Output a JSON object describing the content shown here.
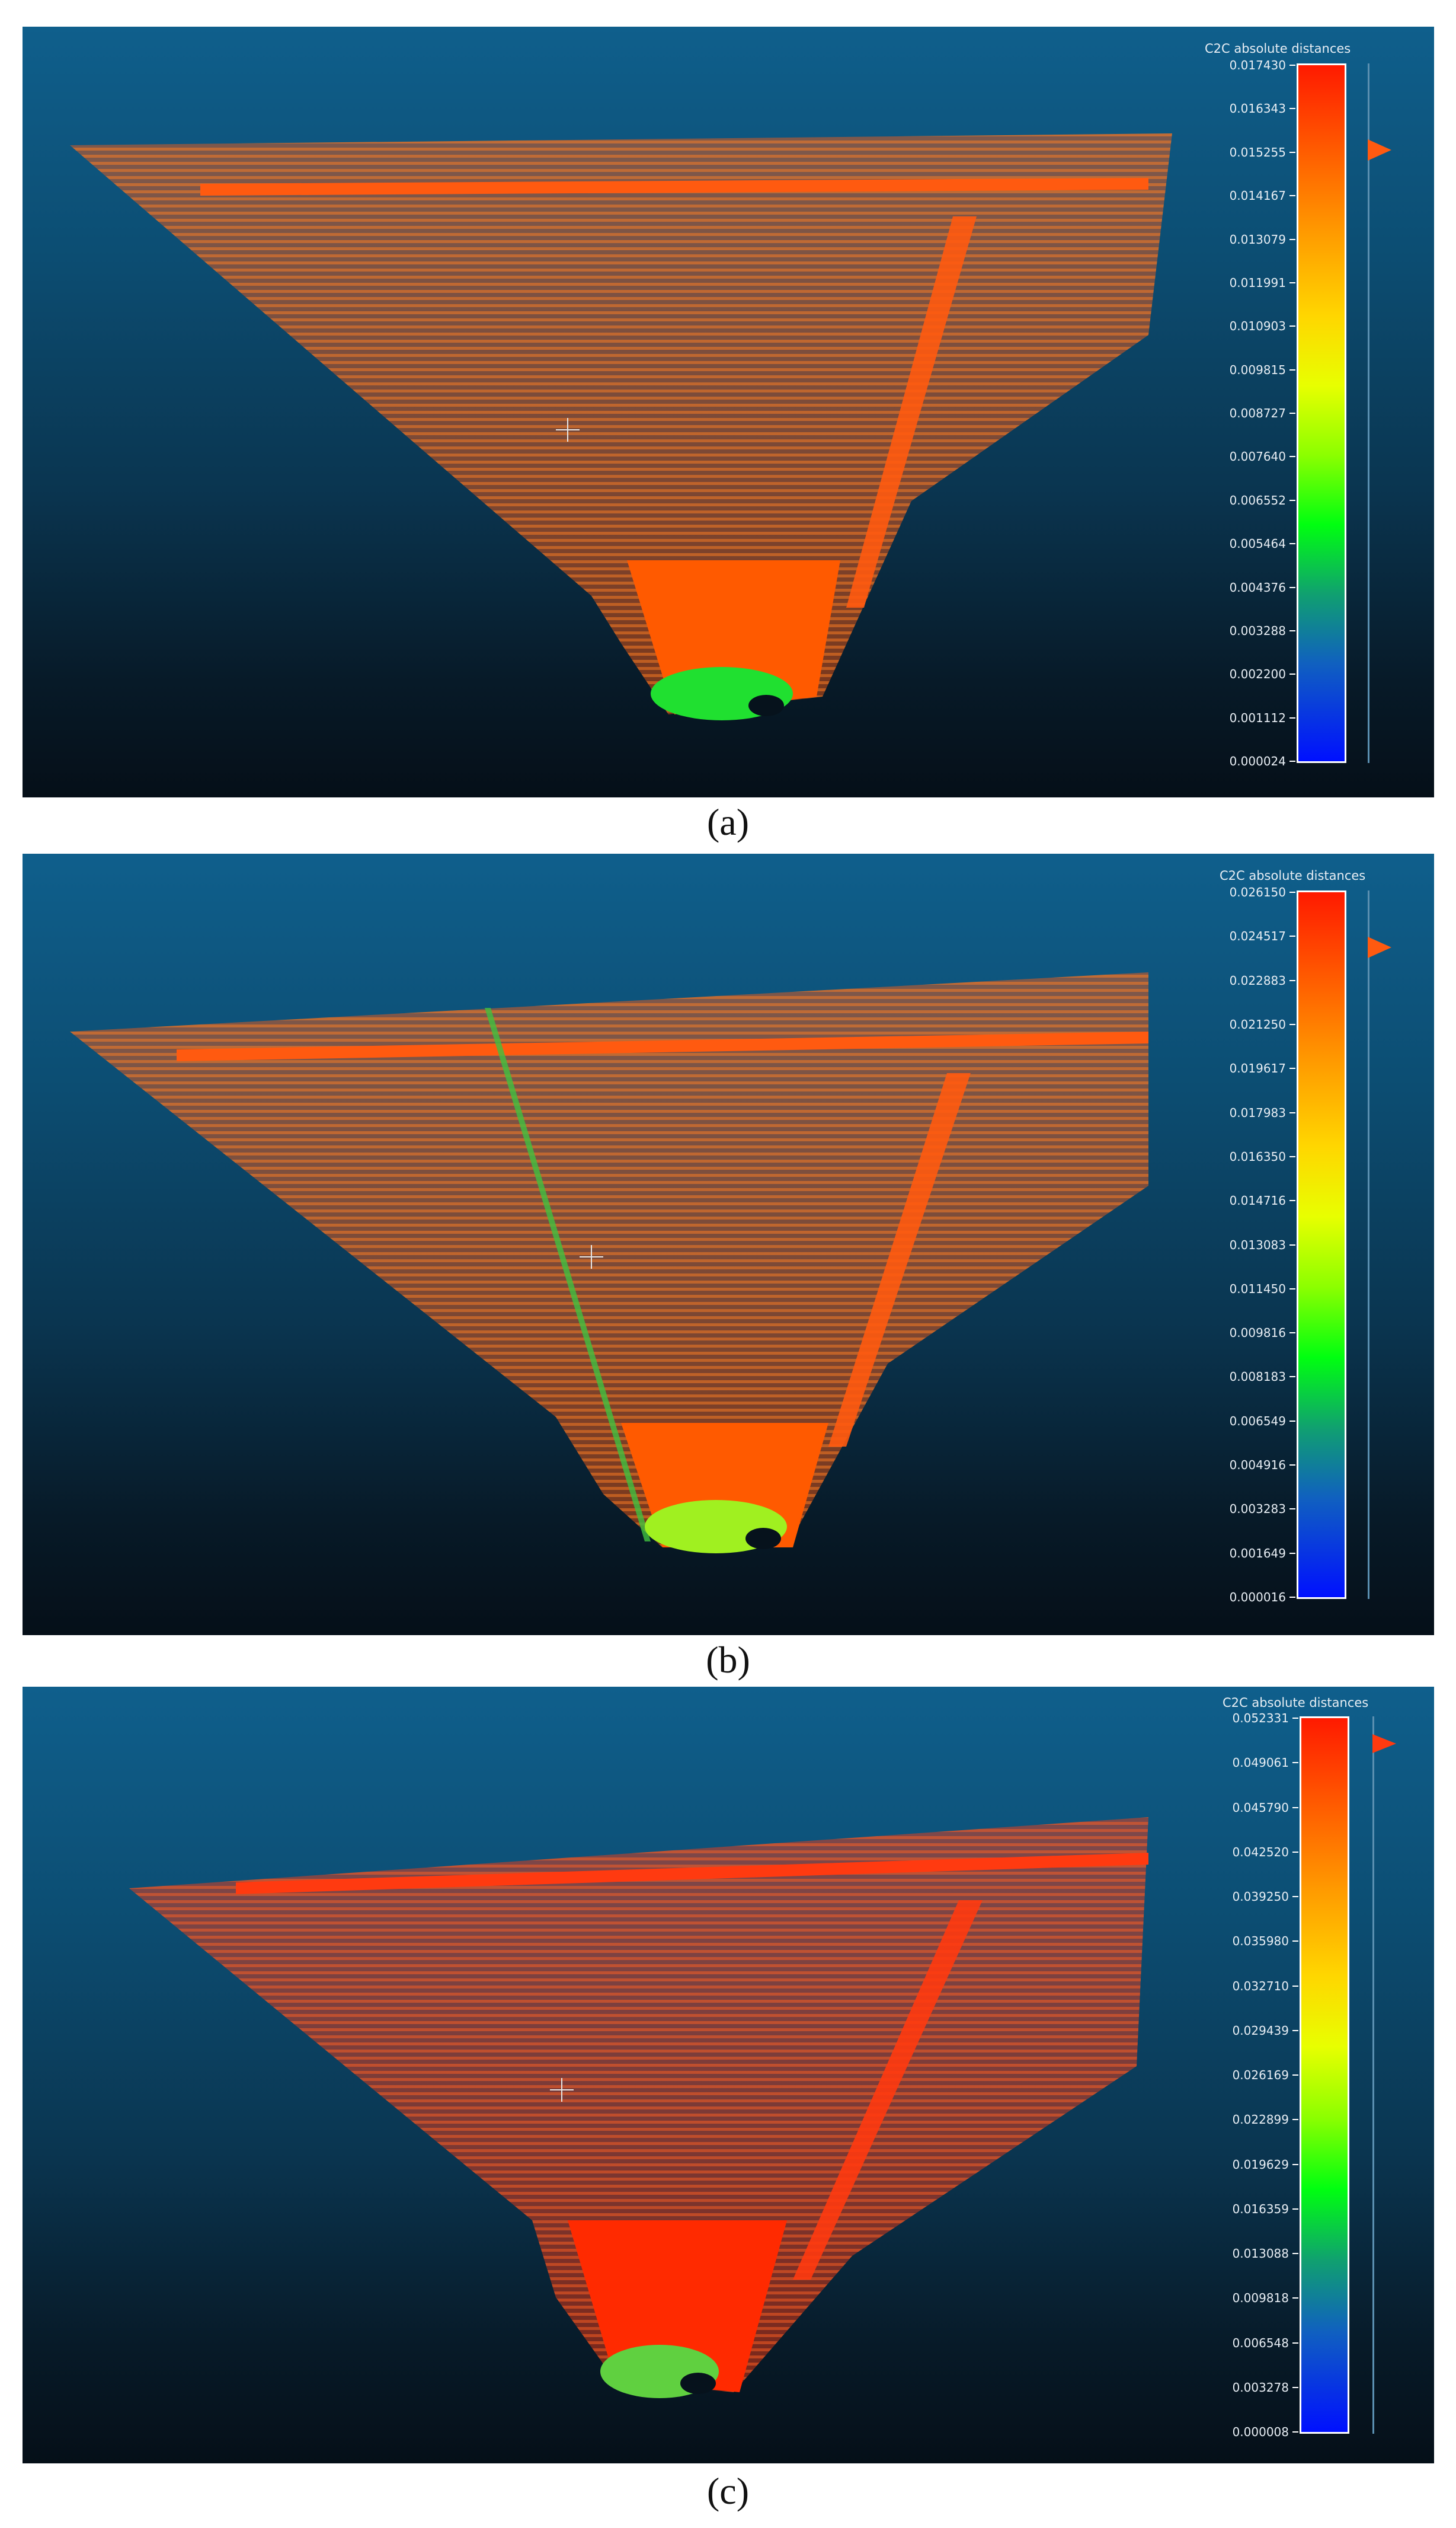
{
  "panels": [
    {
      "caption": "(a)",
      "scale_title": "C2C absolute distances",
      "ticks": [
        "0.017430",
        "0.016343",
        "0.015255",
        "0.014167",
        "0.013079",
        "0.011991",
        "0.010903",
        "0.009815",
        "0.008727",
        "0.007640",
        "0.006552",
        "0.005464",
        "0.004376",
        "0.003288",
        "0.002200",
        "0.001112",
        "0.000024"
      ]
    },
    {
      "caption": "(b)",
      "scale_title": "C2C absolute distances",
      "ticks": [
        "0.026150",
        "0.024517",
        "0.022883",
        "0.021250",
        "0.019617",
        "0.017983",
        "0.016350",
        "0.014716",
        "0.013083",
        "0.011450",
        "0.009816",
        "0.008183",
        "0.006549",
        "0.004916",
        "0.003283",
        "0.001649",
        "0.000016"
      ]
    },
    {
      "caption": "(c)",
      "scale_title": "C2C absolute distances",
      "ticks": [
        "0.052331",
        "0.049061",
        "0.045790",
        "0.042520",
        "0.039250",
        "0.035980",
        "0.032710",
        "0.029439",
        "0.026169",
        "0.022899",
        "0.019629",
        "0.016359",
        "0.013088",
        "0.009818",
        "0.006548",
        "0.003278",
        "0.000008"
      ]
    }
  ],
  "colors": {
    "cloud_main": "#ff5a10",
    "cloud_dense": "#ff4400",
    "cloud_near": "#20e030",
    "background_top": "#0f5f8c",
    "background_bottom": "#050f18"
  }
}
